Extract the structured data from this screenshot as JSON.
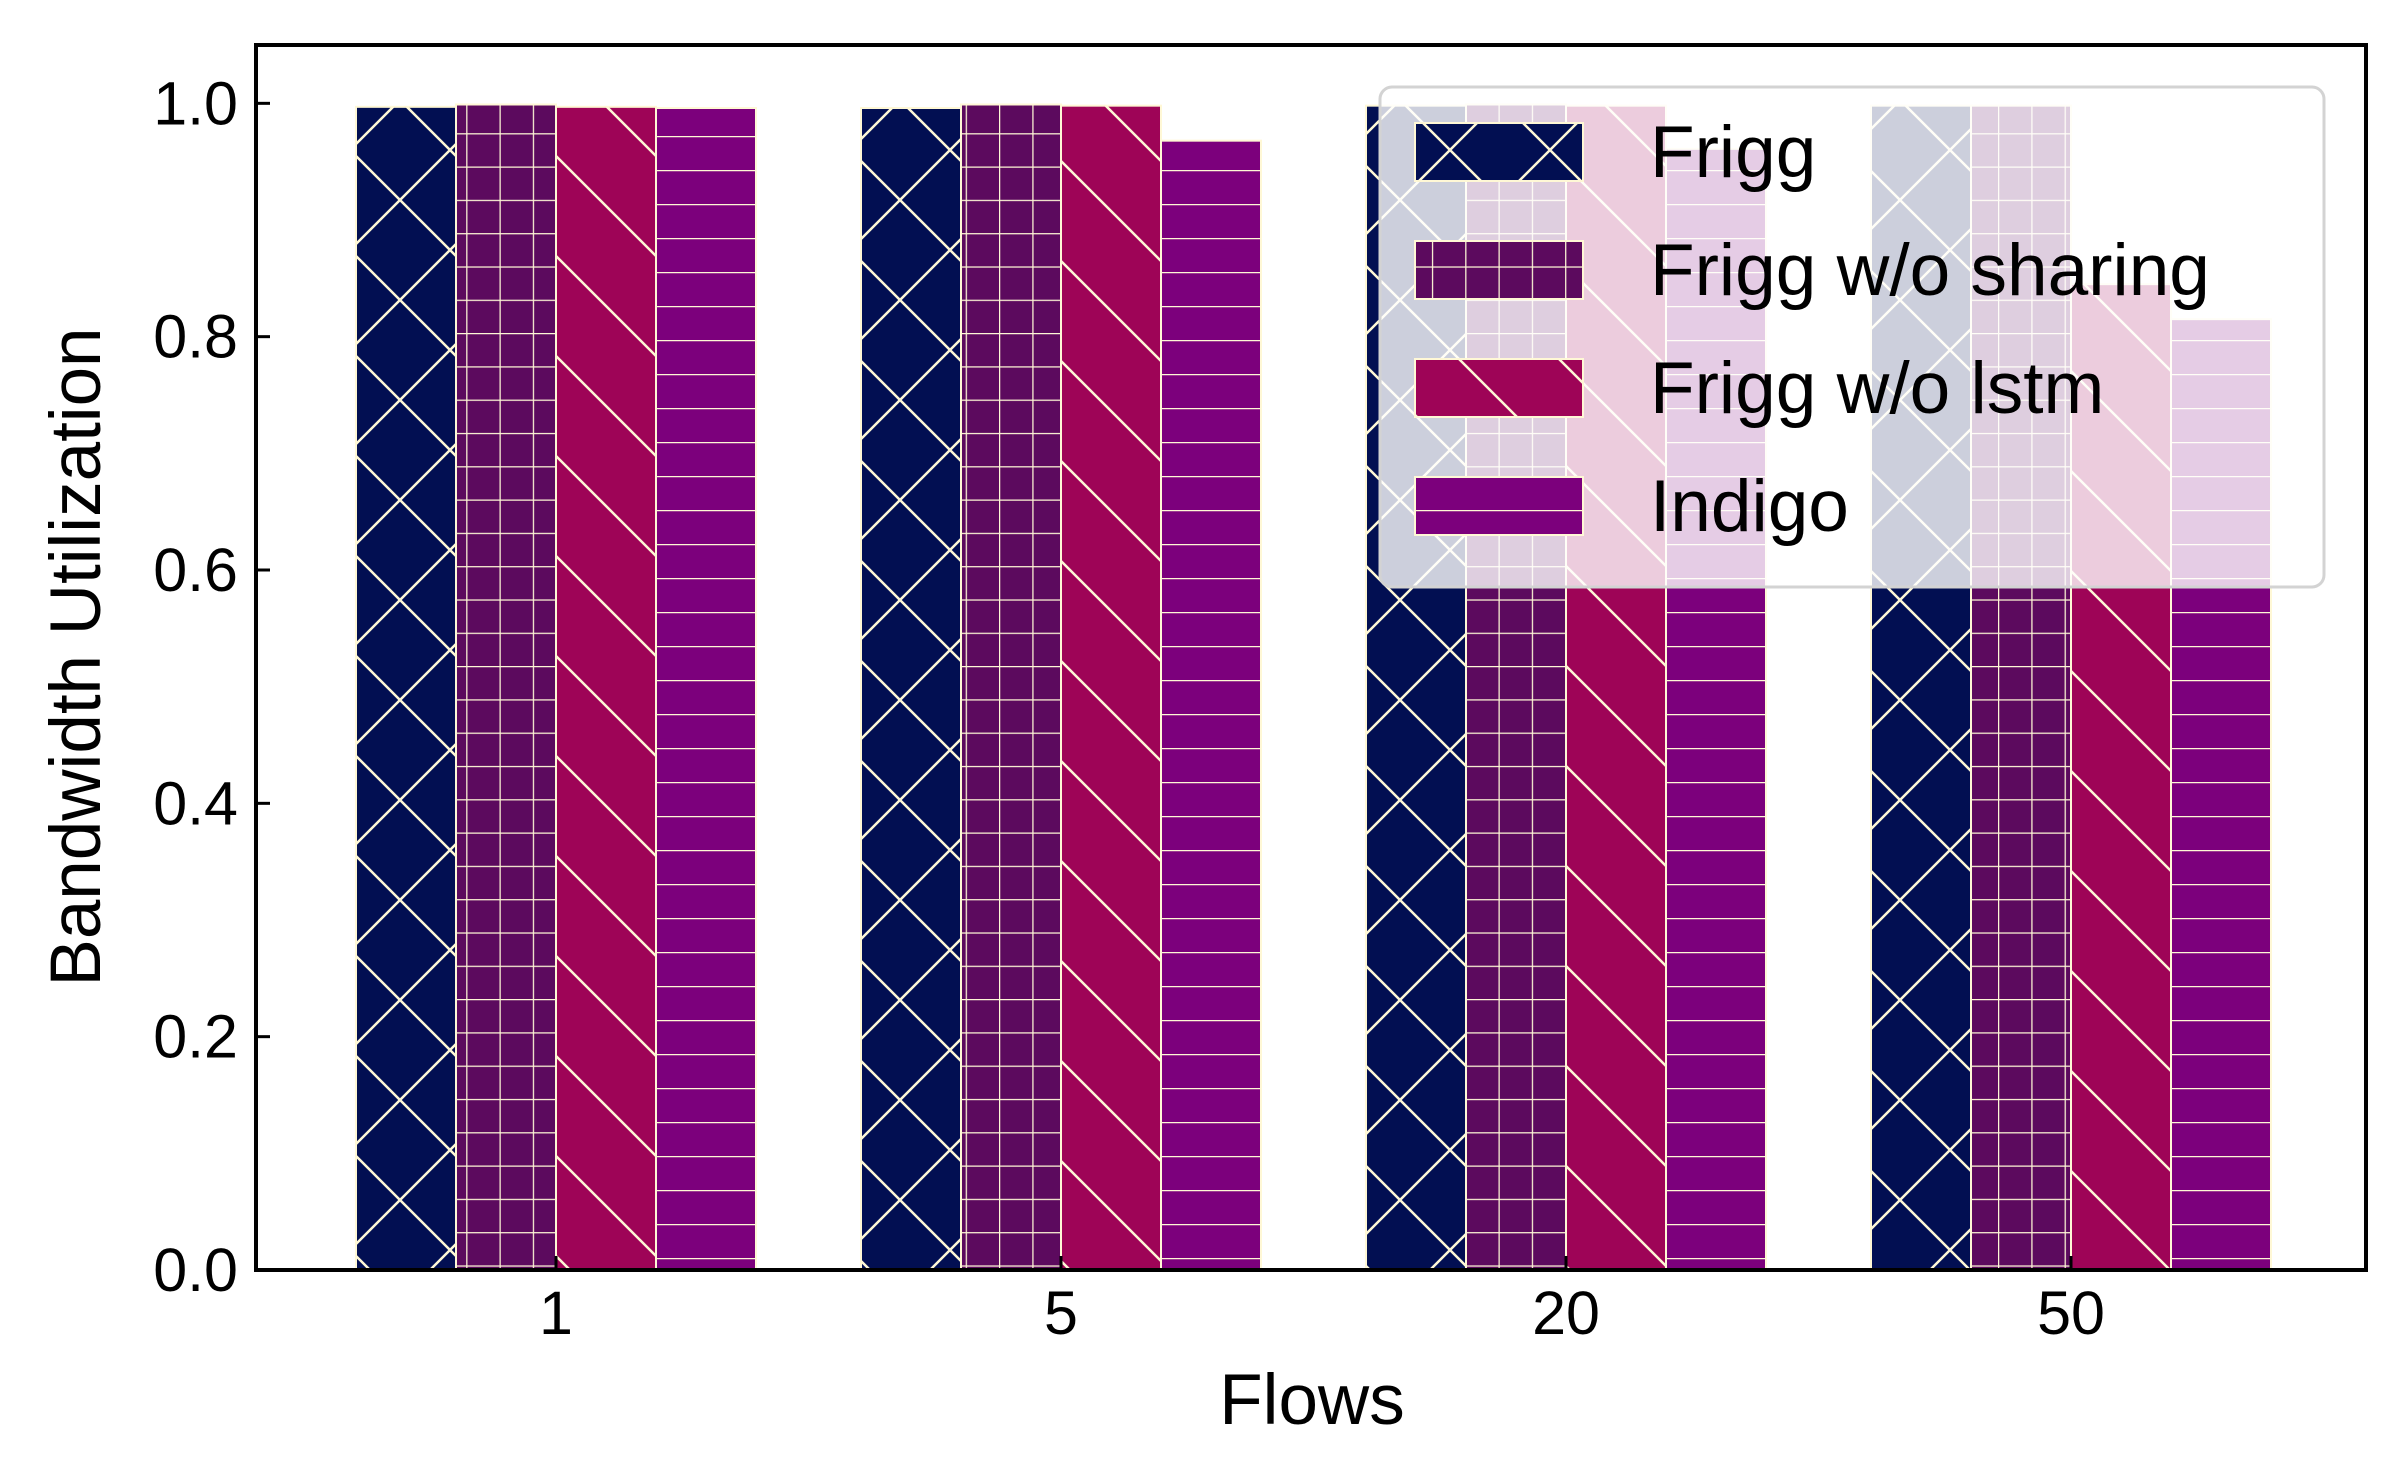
{
  "chart_data": {
    "type": "bar",
    "title": "",
    "xlabel": "Flows",
    "ylabel": "Bandwidth Utilization",
    "categories": [
      "1",
      "5",
      "20",
      "50"
    ],
    "ylim": [
      0,
      1.05
    ],
    "yticks": [
      "0.0",
      "0.2",
      "0.4",
      "0.6",
      "0.8",
      "1.0"
    ],
    "grid": false,
    "legend_position": "top-right",
    "series": [
      {
        "name": "Frigg",
        "values": [
          0.997,
          0.996,
          0.998,
          0.998
        ],
        "color": "#020f52",
        "pattern": "crosshatch-diagonal"
      },
      {
        "name": "Frigg w/o sharing",
        "values": [
          0.999,
          0.999,
          0.999,
          0.998
        ],
        "color": "#5c0a5e",
        "pattern": "grid"
      },
      {
        "name": "Frigg w/o lstm",
        "values": [
          0.997,
          0.998,
          0.998,
          0.845
        ],
        "color": "#9e0457",
        "pattern": "backslash"
      },
      {
        "name": "Indigo",
        "values": [
          0.996,
          0.968,
          0.961,
          0.815
        ],
        "color": "#7c007c",
        "pattern": "horizontal"
      }
    ],
    "hatch_color": "#fff8d6"
  }
}
